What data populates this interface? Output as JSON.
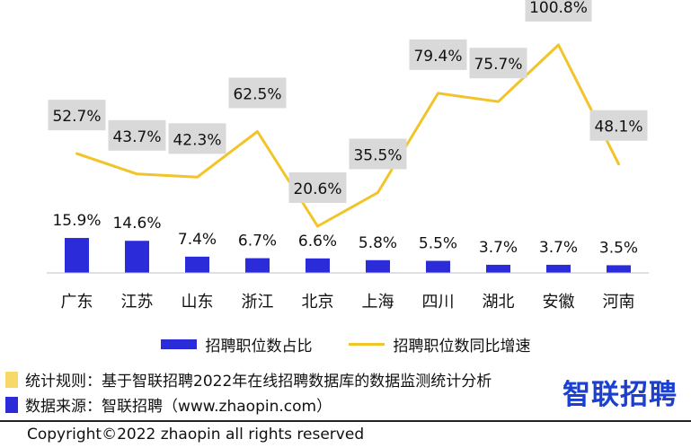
{
  "chart_data": {
    "type": "bar+line",
    "categories": [
      "广东",
      "江苏",
      "山东",
      "浙江",
      "北京",
      "上海",
      "四川",
      "湖北",
      "安徽",
      "河南"
    ],
    "series": [
      {
        "name": "招聘职位数占比",
        "type": "bar",
        "values": [
          15.9,
          14.6,
          7.4,
          6.7,
          6.6,
          5.8,
          5.5,
          3.7,
          3.7,
          3.5
        ],
        "labels": [
          "15.9%",
          "14.6%",
          "7.4%",
          "6.7%",
          "6.6%",
          "5.8%",
          "5.5%",
          "3.7%",
          "3.7%",
          "3.5%"
        ],
        "color": "#2b2bd9"
      },
      {
        "name": "招聘职位数同比增速",
        "type": "line",
        "values": [
          52.7,
          43.7,
          42.3,
          62.5,
          20.6,
          35.5,
          79.4,
          75.7,
          100.8,
          48.1
        ],
        "labels": [
          "52.7%",
          "43.7%",
          "42.3%",
          "62.5%",
          "20.6%",
          "35.5%",
          "79.4%",
          "75.7%",
          "100.8%",
          "48.1%"
        ],
        "color": "#f2c428"
      }
    ],
    "label_box_color": "#d9d9d9",
    "legend_position": "bottom",
    "grid": false
  },
  "notes": [
    {
      "text": "统计规则：基于智联招聘2022年在线招聘数据库的数据监测统计分析",
      "color": "#f7d96a"
    },
    {
      "text": "数据来源：智联招聘（www.zhaopin.com）",
      "color": "#2b2bd9"
    }
  ],
  "logo": {
    "text": "智联招聘",
    "color": "#1a3fd1"
  },
  "copyright": "Copyright©2022 zhaopin all rights reserved"
}
